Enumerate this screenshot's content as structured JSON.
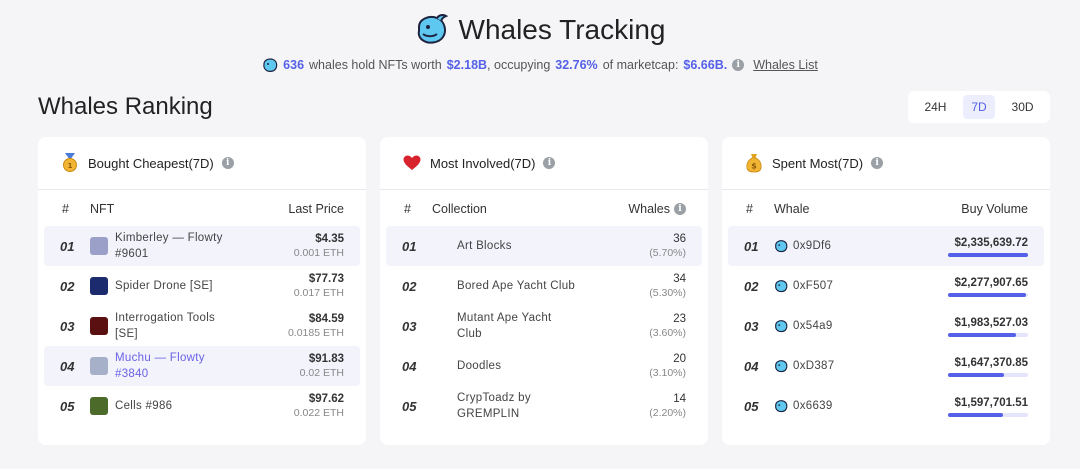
{
  "header": {
    "title": "Whales Tracking",
    "summary": {
      "whale_count": "636",
      "text1": "whales hold NFTs worth",
      "worth": "$2.18B",
      "text2": ", occupying",
      "percent": "32.76%",
      "text3": "of marketcap:",
      "marketcap": "$6.66B.",
      "link": "Whales List"
    }
  },
  "section_title": "Whales Ranking",
  "ranges": [
    "24H",
    "7D",
    "30D"
  ],
  "active_range": "7D",
  "cheapest": {
    "title": "Bought Cheapest(7D)",
    "col_rank": "#",
    "col_name": "NFT",
    "col_value": "Last Price",
    "rows": [
      {
        "rank": "01",
        "name1": "Kimberley — Flowty",
        "name2": "#9601",
        "usd": "$4.35",
        "eth": "0.001 ETH",
        "color": "#9aa0c8"
      },
      {
        "rank": "02",
        "name1": "Spider Drone [SE]",
        "name2": "",
        "usd": "$77.73",
        "eth": "0.017 ETH",
        "color": "#1c2b6e"
      },
      {
        "rank": "03",
        "name1": "Interrogation Tools",
        "name2": "[SE]",
        "usd": "$84.59",
        "eth": "0.0185 ETH",
        "color": "#5a1010"
      },
      {
        "rank": "04",
        "name1": "Muchu — Flowty",
        "name2": "#3840",
        "usd": "$91.83",
        "eth": "0.02 ETH",
        "color": "#a7b0c9"
      },
      {
        "rank": "05",
        "name1": "Cells #986",
        "name2": "",
        "usd": "$97.62",
        "eth": "0.022 ETH",
        "color": "#4c6b2b"
      }
    ]
  },
  "involved": {
    "title": "Most Involved(7D)",
    "col_rank": "#",
    "col_name": "Collection",
    "col_value": "Whales",
    "rows": [
      {
        "rank": "01",
        "name1": "Art Blocks",
        "name2": "",
        "count": "36",
        "pct": "(5.70%)"
      },
      {
        "rank": "02",
        "name1": "Bored Ape Yacht Club",
        "name2": "",
        "count": "34",
        "pct": "(5.30%)"
      },
      {
        "rank": "03",
        "name1": "Mutant Ape Yacht",
        "name2": "Club",
        "count": "23",
        "pct": "(3.60%)"
      },
      {
        "rank": "04",
        "name1": "Doodles",
        "name2": "",
        "count": "20",
        "pct": "(3.10%)"
      },
      {
        "rank": "05",
        "name1": "CrypToadz by",
        "name2": "GREMPLIN",
        "count": "14",
        "pct": "(2.20%)"
      }
    ]
  },
  "spent": {
    "title": "Spent Most(7D)",
    "col_rank": "#",
    "col_name": "Whale",
    "col_value": "Buy Volume",
    "rows": [
      {
        "rank": "01",
        "whale": "0x9Df6",
        "volume": "$2,335,639.72",
        "fraction": 1.0
      },
      {
        "rank": "02",
        "whale": "0xF507",
        "volume": "$2,277,907.65",
        "fraction": 0.975
      },
      {
        "rank": "03",
        "whale": "0x54a9",
        "volume": "$1,983,527.03",
        "fraction": 0.85
      },
      {
        "rank": "04",
        "whale": "0xD387",
        "volume": "$1,647,370.85",
        "fraction": 0.705
      },
      {
        "rank": "05",
        "whale": "0x6639",
        "volume": "$1,597,701.51",
        "fraction": 0.684
      }
    ]
  }
}
